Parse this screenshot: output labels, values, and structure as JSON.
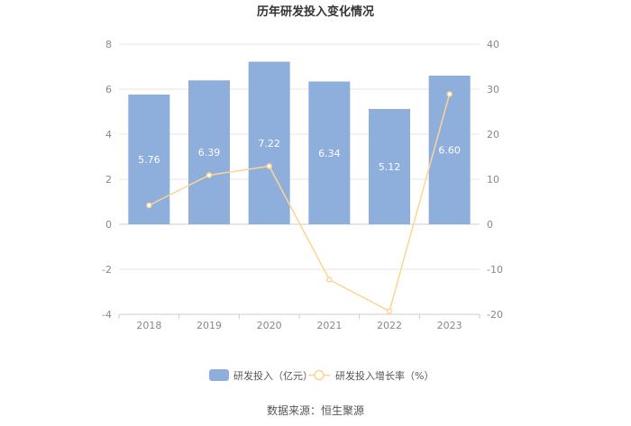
{
  "chart_data": {
    "type": "bar",
    "title": "历年研发投入变化情况",
    "categories": [
      "2018",
      "2019",
      "2020",
      "2021",
      "2022",
      "2023"
    ],
    "series": [
      {
        "name": "研发投入（亿元）",
        "type": "bar",
        "axis": "left",
        "values": [
          5.76,
          6.39,
          7.22,
          6.34,
          5.12,
          6.6
        ],
        "labels": [
          "5.76",
          "6.39",
          "7.22",
          "6.34",
          "5.12",
          "6.60"
        ],
        "color": "#8eaedb"
      },
      {
        "name": "研发投入增长率（%）",
        "type": "line",
        "axis": "right",
        "values": [
          4.2,
          10.9,
          12.9,
          -12.3,
          -19.3,
          28.9
        ],
        "color": "#fcd593"
      }
    ],
    "yleft": {
      "ylim": [
        -4,
        8
      ],
      "ticks": [
        "8",
        "6",
        "4",
        "2",
        "0",
        "-2",
        "-4"
      ],
      "tick_values": [
        8,
        6,
        4,
        2,
        0,
        -2,
        -4
      ]
    },
    "yright": {
      "ylim": [
        -20,
        40
      ],
      "ticks": [
        "40",
        "30",
        "20",
        "10",
        "0",
        "-10",
        "-20"
      ],
      "tick_values": [
        40,
        30,
        20,
        10,
        0,
        -10,
        -20
      ]
    },
    "grid": true,
    "legend_position": "bottom-center"
  },
  "source_text": "数据来源：恒生聚源"
}
